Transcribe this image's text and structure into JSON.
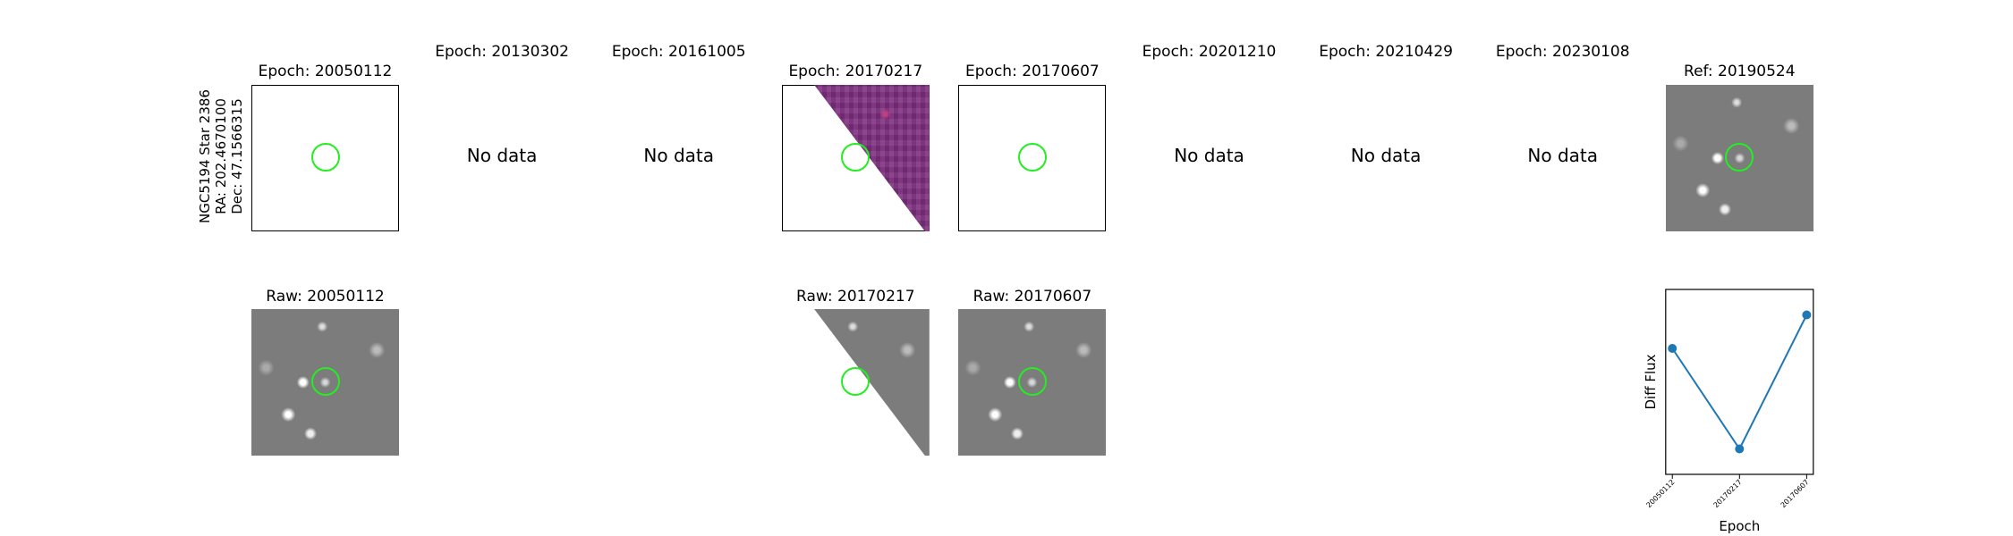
{
  "figure_label": [
    "NGC5194 Star 2386",
    "RA: 202.4670100",
    "Dec: 47.1566315"
  ],
  "epoch_panels": [
    {
      "title": "Epoch: 20050112",
      "raw_title": "Raw: 20050112"
    },
    {
      "title": "Epoch: 20130302",
      "message": "No data"
    },
    {
      "title": "Epoch: 20161005",
      "message": "No data"
    },
    {
      "title": "Epoch: 20170217",
      "raw_title": "Raw: 20170217"
    },
    {
      "title": "Epoch: 20170607",
      "raw_title": "Raw: 20170607"
    },
    {
      "title": "Epoch: 20201210",
      "message": "No data"
    },
    {
      "title": "Epoch: 20210429",
      "message": "No data"
    },
    {
      "title": "Epoch: 20230108",
      "message": "No data"
    }
  ],
  "ref_panel": {
    "title": "Ref: 20190524"
  },
  "chart_data": {
    "type": "line",
    "xlabel": "Epoch",
    "ylabel": "Diff Flux",
    "categories": [
      "20050112",
      "20170217",
      "20170607"
    ],
    "values": [
      0.75,
      0,
      1
    ],
    "color": "#1f77b4"
  }
}
